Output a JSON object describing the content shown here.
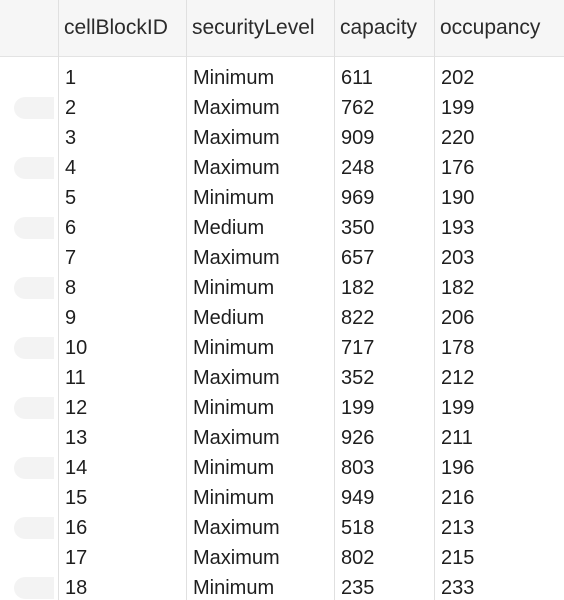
{
  "table": {
    "columns": [
      "cellBlockID",
      "securityLevel",
      "capacity",
      "occupancy"
    ],
    "rows": [
      [
        "1",
        "Minimum",
        "611",
        "202"
      ],
      [
        "2",
        "Maximum",
        "762",
        "199"
      ],
      [
        "3",
        "Maximum",
        "909",
        "220"
      ],
      [
        "4",
        "Maximum",
        "248",
        "176"
      ],
      [
        "5",
        "Minimum",
        "969",
        "190"
      ],
      [
        "6",
        "Medium",
        "350",
        "193"
      ],
      [
        "7",
        "Maximum",
        "657",
        "203"
      ],
      [
        "8",
        "Minimum",
        "182",
        "182"
      ],
      [
        "9",
        "Medium",
        "822",
        "206"
      ],
      [
        "10",
        "Minimum",
        "717",
        "178"
      ],
      [
        "11",
        "Maximum",
        "352",
        "212"
      ],
      [
        "12",
        "Minimum",
        "199",
        "199"
      ],
      [
        "13",
        "Maximum",
        "926",
        "211"
      ],
      [
        "14",
        "Minimum",
        "803",
        "196"
      ],
      [
        "15",
        "Minimum",
        "949",
        "216"
      ],
      [
        "16",
        "Maximum",
        "518",
        "213"
      ],
      [
        "17",
        "Maximum",
        "802",
        "215"
      ],
      [
        "18",
        "Minimum",
        "235",
        "233"
      ]
    ]
  }
}
